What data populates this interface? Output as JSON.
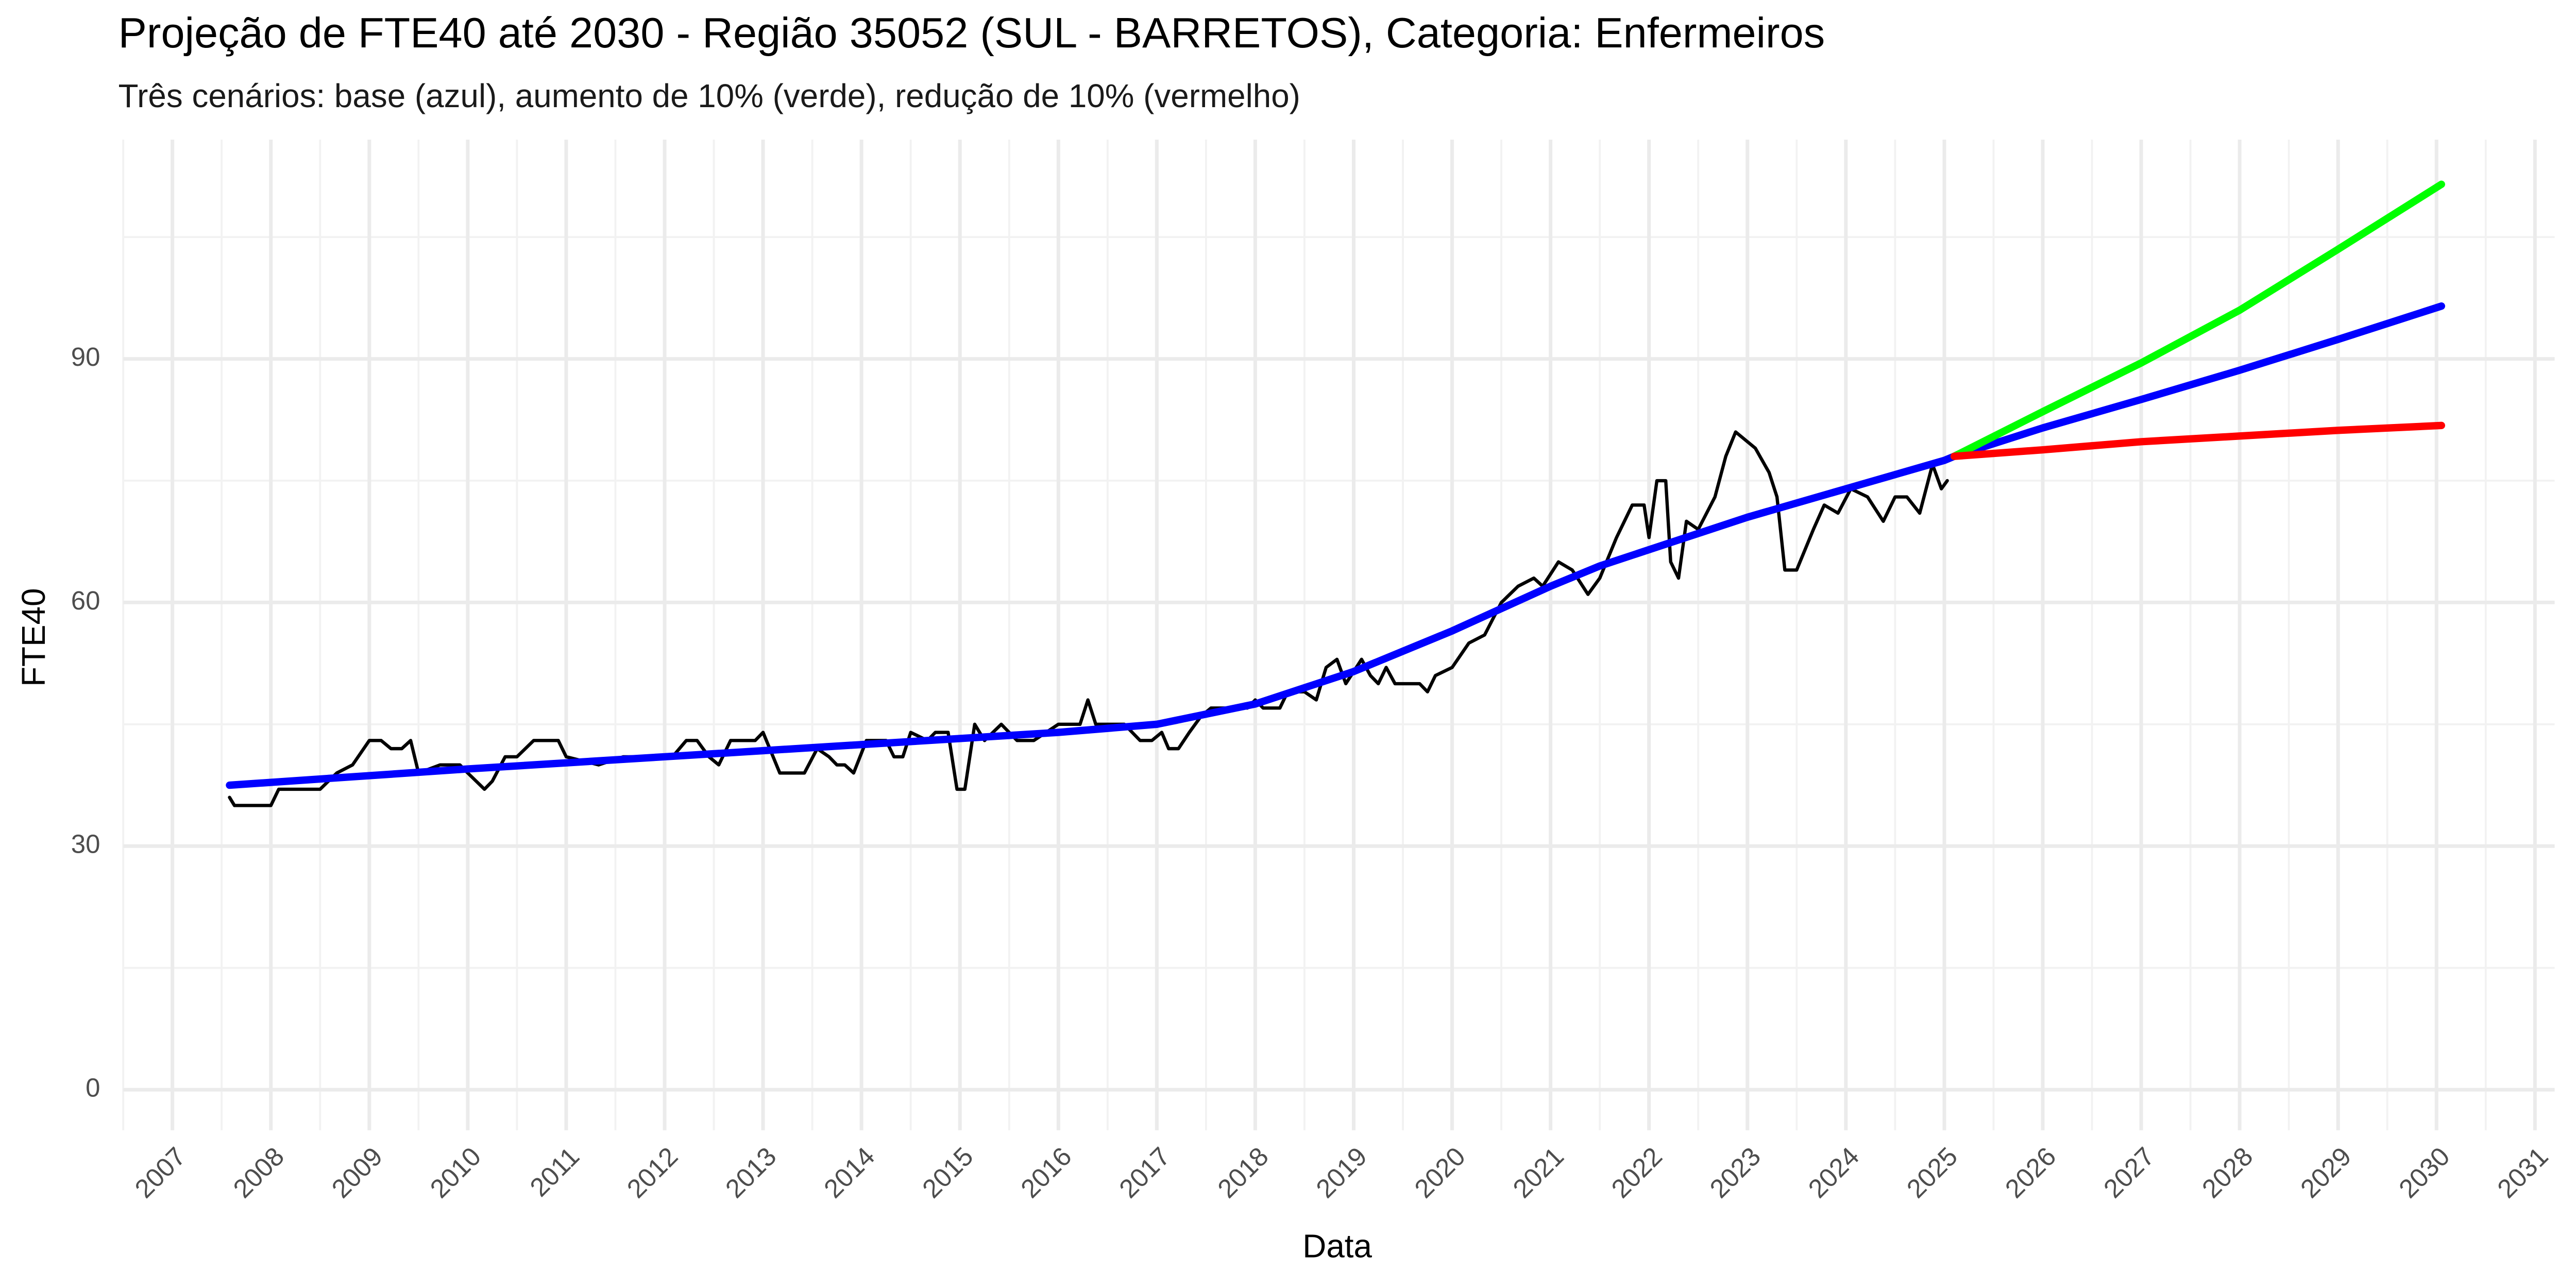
{
  "chart_data": {
    "type": "line",
    "title": "Projeção de FTE40 até 2030 - Região 35052 (SUL - BARRETOS), Categoria: Enfermeiros",
    "subtitle": "Três cenários: base (azul), aumento de 10% (verde), redução de 10% (vermelho)",
    "x_label": "Data",
    "y_label": "FTE40",
    "xlim": [
      2006.5,
      2031.2
    ],
    "xticks": [
      2007,
      2008,
      2009,
      2010,
      2011,
      2012,
      2013,
      2014,
      2015,
      2016,
      2017,
      2018,
      2019,
      2020,
      2021,
      2022,
      2023,
      2024,
      2025,
      2026,
      2027,
      2028,
      2029,
      2030,
      2031
    ],
    "ylim": [
      -5,
      117
    ],
    "yticks": [
      0,
      30,
      60,
      90
    ],
    "grid": true,
    "series": [
      {
        "color": "#000000",
        "x": [
          2007.58,
          2007.63,
          2008.0,
          2008.08,
          2008.5,
          2008.67,
          2008.83,
          2009.0,
          2009.12,
          2009.22,
          2009.33,
          2009.42,
          2009.5,
          2009.72,
          2009.92,
          2010.0,
          2010.17,
          2010.25,
          2010.38,
          2010.5,
          2010.67,
          2010.92,
          2011.0,
          2011.33,
          2011.58,
          2012.08,
          2012.22,
          2012.33,
          2012.45,
          2012.55,
          2012.67,
          2012.92,
          2013.0,
          2013.17,
          2013.42,
          2013.55,
          2013.67,
          2013.75,
          2013.83,
          2013.92,
          2014.05,
          2014.25,
          2014.33,
          2014.42,
          2014.5,
          2014.67,
          2014.75,
          2014.88,
          2014.97,
          2015.05,
          2015.15,
          2015.25,
          2015.42,
          2015.58,
          2015.75,
          2016.0,
          2016.22,
          2016.3,
          2016.38,
          2016.67,
          2016.83,
          2016.95,
          2017.05,
          2017.12,
          2017.22,
          2017.33,
          2017.45,
          2017.55,
          2017.92,
          2018.0,
          2018.08,
          2018.25,
          2018.33,
          2018.5,
          2018.62,
          2018.72,
          2018.83,
          2018.92,
          2019.08,
          2019.17,
          2019.25,
          2019.33,
          2019.42,
          2019.67,
          2019.75,
          2019.83,
          2020.0,
          2020.17,
          2020.33,
          2020.5,
          2020.67,
          2020.83,
          2020.92,
          2021.08,
          2021.22,
          2021.38,
          2021.5,
          2021.67,
          2021.83,
          2021.95,
          2022.0,
          2022.08,
          2022.17,
          2022.22,
          2022.3,
          2022.38,
          2022.5,
          2022.67,
          2022.78,
          2022.88,
          2023.08,
          2023.22,
          2023.3,
          2023.38,
          2023.5,
          2023.67,
          2023.78,
          2023.92,
          2024.05,
          2024.22,
          2024.38,
          2024.5,
          2024.62,
          2024.75,
          2024.88,
          2024.97,
          2025.03
        ],
        "values": [
          36,
          35,
          35,
          37,
          37,
          39,
          40,
          43,
          43,
          42,
          42,
          43,
          39,
          40,
          40,
          39,
          37,
          38,
          41,
          41,
          43,
          43,
          41,
          40,
          41,
          41,
          43,
          43,
          41,
          40,
          43,
          43,
          44,
          39,
          39,
          42,
          41,
          40,
          40,
          39,
          43,
          43,
          41,
          41,
          44,
          43,
          44,
          44,
          37,
          37,
          45,
          43,
          45,
          43,
          43,
          45,
          45,
          48,
          45,
          45,
          43,
          43,
          44,
          42,
          42,
          44,
          46,
          47,
          47,
          48,
          47,
          47,
          49,
          49,
          48,
          52,
          53,
          50,
          53,
          51,
          50,
          52,
          50,
          50,
          49,
          51,
          52,
          55,
          56,
          60,
          62,
          63,
          62,
          65,
          64,
          61,
          63,
          68,
          72,
          72,
          68,
          75,
          75,
          65,
          63,
          70,
          69,
          73,
          78,
          81,
          79,
          76,
          73,
          64,
          64,
          69,
          72,
          71,
          74,
          73,
          70,
          73,
          73,
          71,
          77,
          74,
          75
        ]
      },
      {
        "color": "#0000ff",
        "x": [
          2007.58,
          2010,
          2012,
          2014,
          2016,
          2017,
          2018,
          2019,
          2020,
          2021,
          2021.5,
          2022,
          2023,
          2024,
          2025,
          2025.1,
          2026,
          2027,
          2028,
          2029,
          2030.05
        ],
        "values": [
          37.5,
          39.5,
          41,
          42.5,
          44,
          45,
          47.5,
          51.5,
          56.5,
          62,
          64.5,
          66.5,
          70.5,
          74,
          77.5,
          78,
          81.5,
          85,
          88.6,
          92.4,
          96.5
        ]
      },
      {
        "color": "#00ff00",
        "x": [
          2025.1,
          2026,
          2027,
          2028,
          2029,
          2030.05
        ],
        "values": [
          78,
          83.5,
          89.5,
          96,
          103.5,
          111.5
        ]
      },
      {
        "color": "#ff0000",
        "x": [
          2025.1,
          2026,
          2027,
          2028,
          2029,
          2030.05
        ],
        "values": [
          78,
          78.8,
          79.8,
          80.5,
          81.2,
          81.8
        ]
      }
    ]
  }
}
